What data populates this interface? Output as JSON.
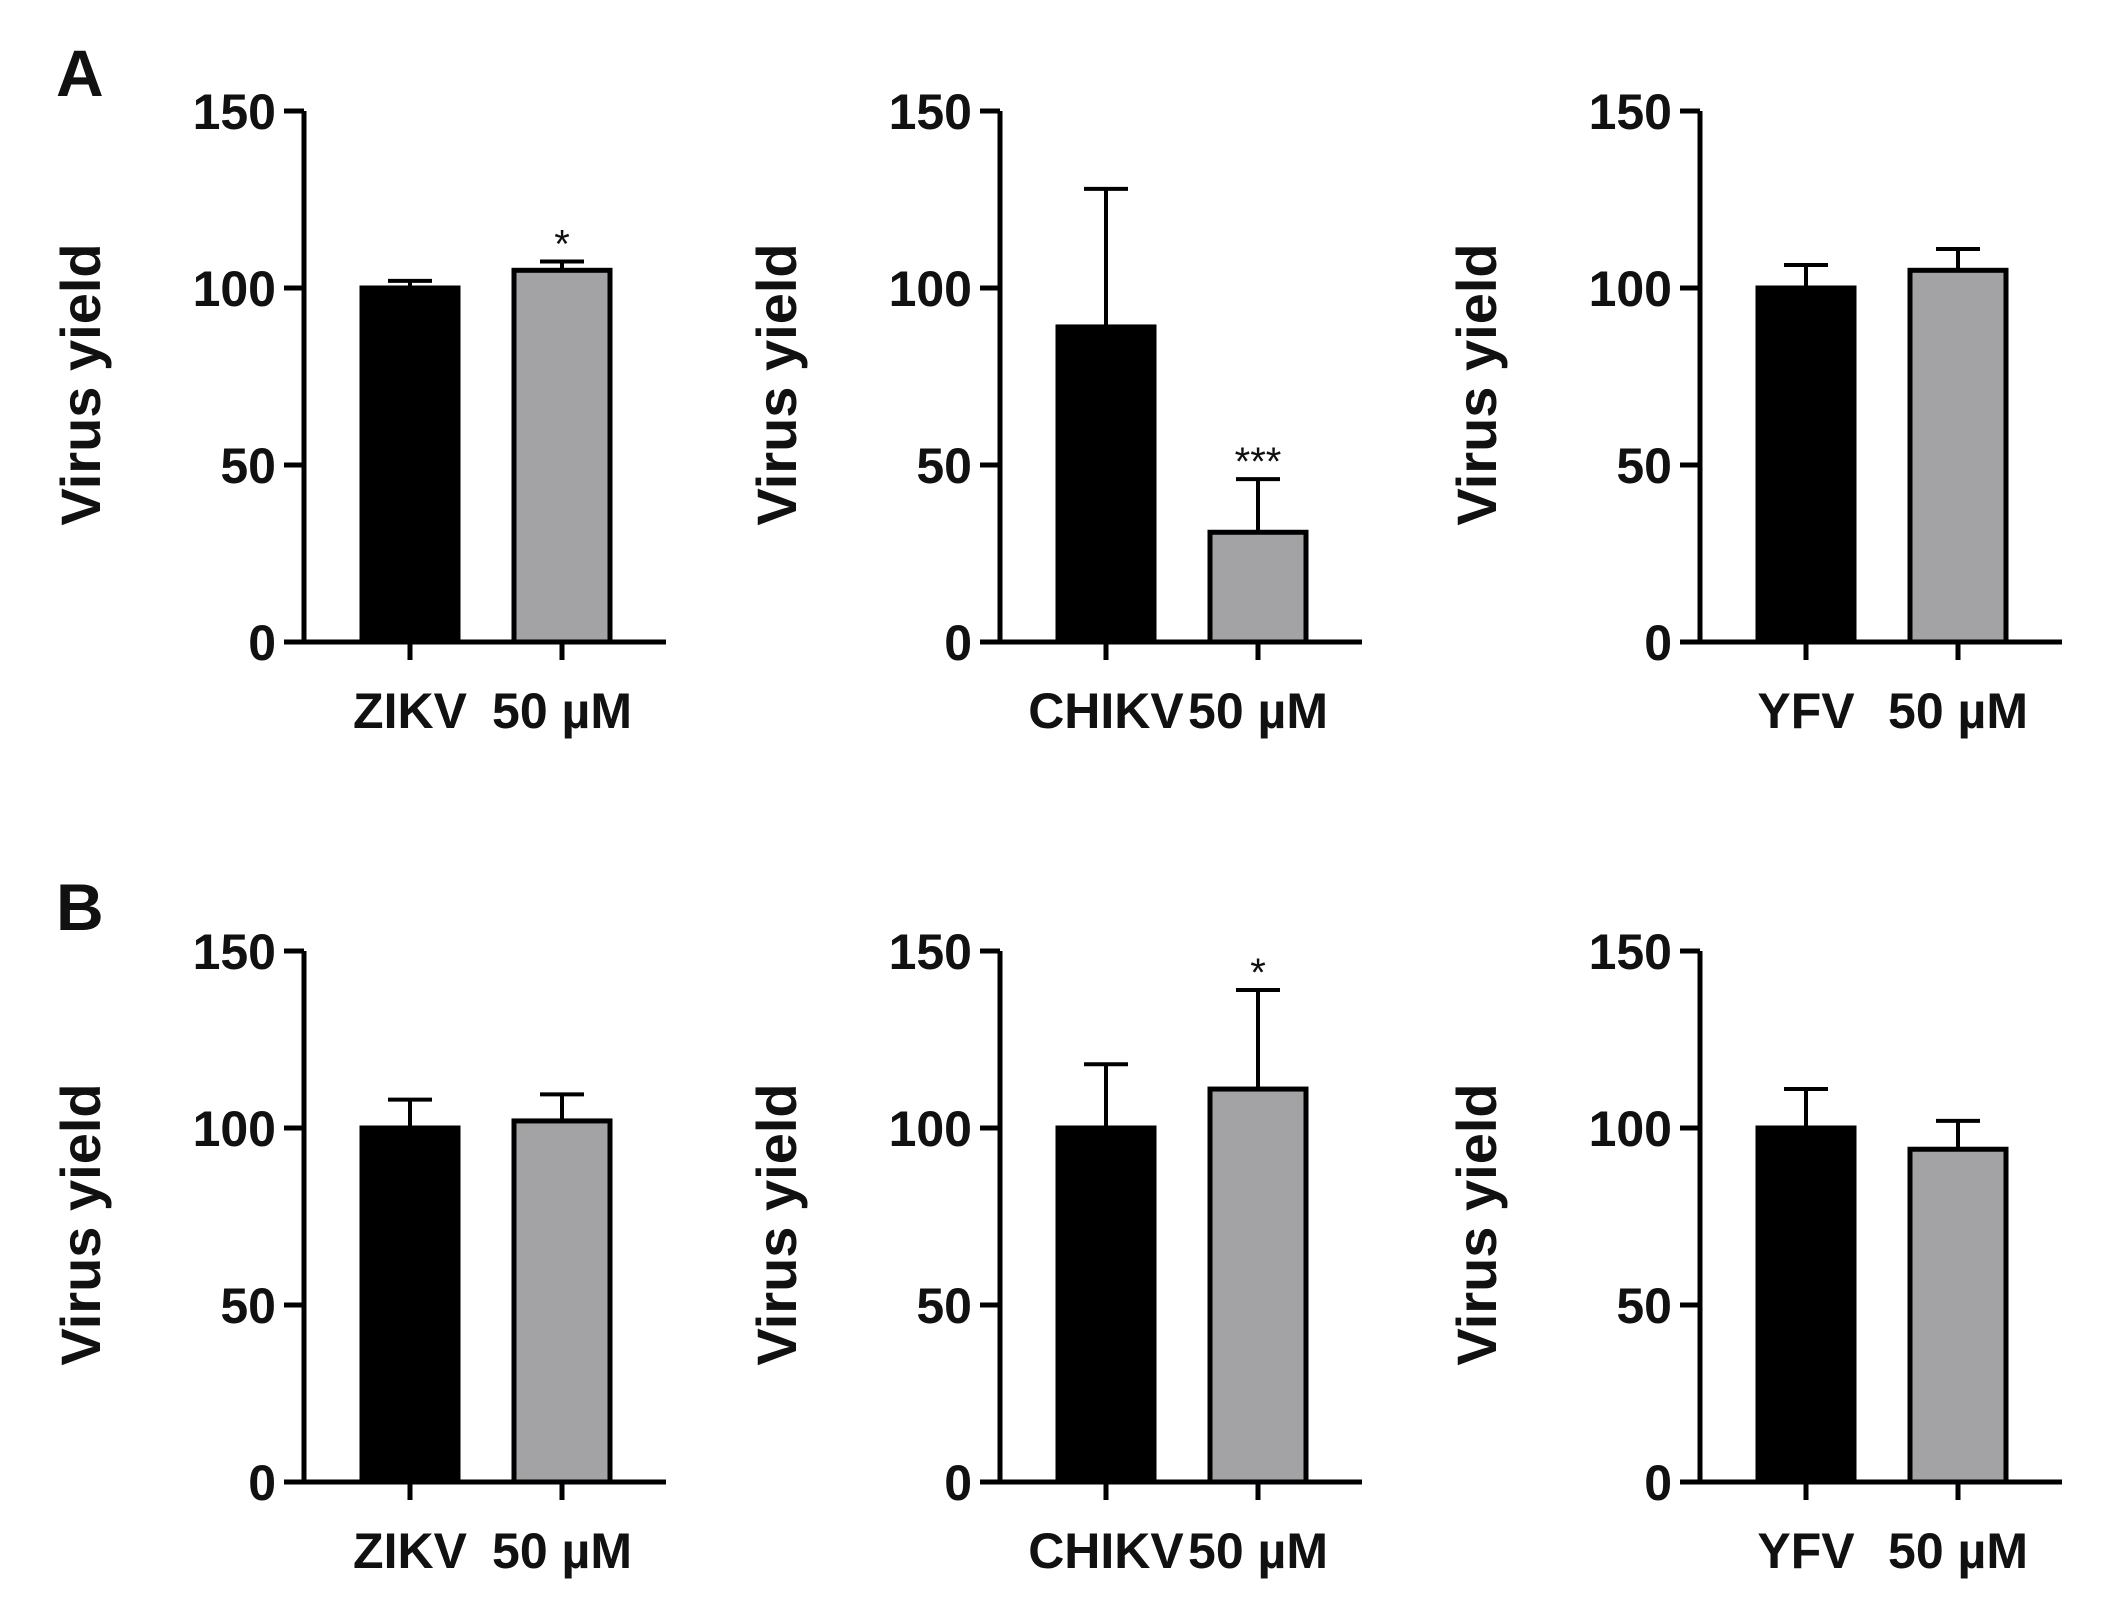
{
  "panels": [
    {
      "label": "A"
    },
    {
      "label": "B"
    }
  ],
  "colors": {
    "control": "#000000",
    "treated": "#a3a3a6"
  },
  "chart_data": [
    {
      "type": "bar",
      "panel": "A",
      "title": "",
      "ylabel": "Virus yield",
      "ylim": [
        0,
        150
      ],
      "yticks": [
        0,
        50,
        100,
        150
      ],
      "categories": [
        "ZIKV",
        "50 µM"
      ],
      "values": [
        100,
        105
      ],
      "errors": [
        2,
        2.5
      ],
      "significance": [
        "",
        "*"
      ]
    },
    {
      "type": "bar",
      "panel": "A",
      "title": "",
      "ylabel": "Virus yield",
      "ylim": [
        0,
        150
      ],
      "yticks": [
        0,
        50,
        100,
        150
      ],
      "categories": [
        "CHIKV",
        "50 µM"
      ],
      "values": [
        89,
        31
      ],
      "errors": [
        39,
        15
      ],
      "significance": [
        "",
        "***"
      ]
    },
    {
      "type": "bar",
      "panel": "A",
      "title": "",
      "ylabel": "Virus yield",
      "ylim": [
        0,
        150
      ],
      "yticks": [
        0,
        50,
        100,
        150
      ],
      "categories": [
        "YFV",
        "50 µM"
      ],
      "values": [
        100,
        105
      ],
      "errors": [
        6.5,
        6
      ],
      "significance": [
        "",
        ""
      ]
    },
    {
      "type": "bar",
      "panel": "B",
      "title": "",
      "ylabel": "Virus yield",
      "ylim": [
        0,
        150
      ],
      "yticks": [
        0,
        50,
        100,
        150
      ],
      "categories": [
        "ZIKV",
        "50 µM"
      ],
      "values": [
        100,
        102
      ],
      "errors": [
        8,
        7.5
      ],
      "significance": [
        "",
        ""
      ]
    },
    {
      "type": "bar",
      "panel": "B",
      "title": "",
      "ylabel": "Virus yield",
      "ylim": [
        0,
        150
      ],
      "yticks": [
        0,
        50,
        100,
        150
      ],
      "categories": [
        "CHIKV",
        "50 µM"
      ],
      "values": [
        100,
        111
      ],
      "errors": [
        18,
        28
      ],
      "significance": [
        "",
        "*"
      ]
    },
    {
      "type": "bar",
      "panel": "B",
      "title": "",
      "ylabel": "Virus yield",
      "ylim": [
        0,
        150
      ],
      "yticks": [
        0,
        50,
        100,
        150
      ],
      "categories": [
        "YFV",
        "50 µM"
      ],
      "values": [
        100,
        94
      ],
      "errors": [
        11,
        8
      ],
      "significance": [
        "",
        ""
      ]
    }
  ]
}
